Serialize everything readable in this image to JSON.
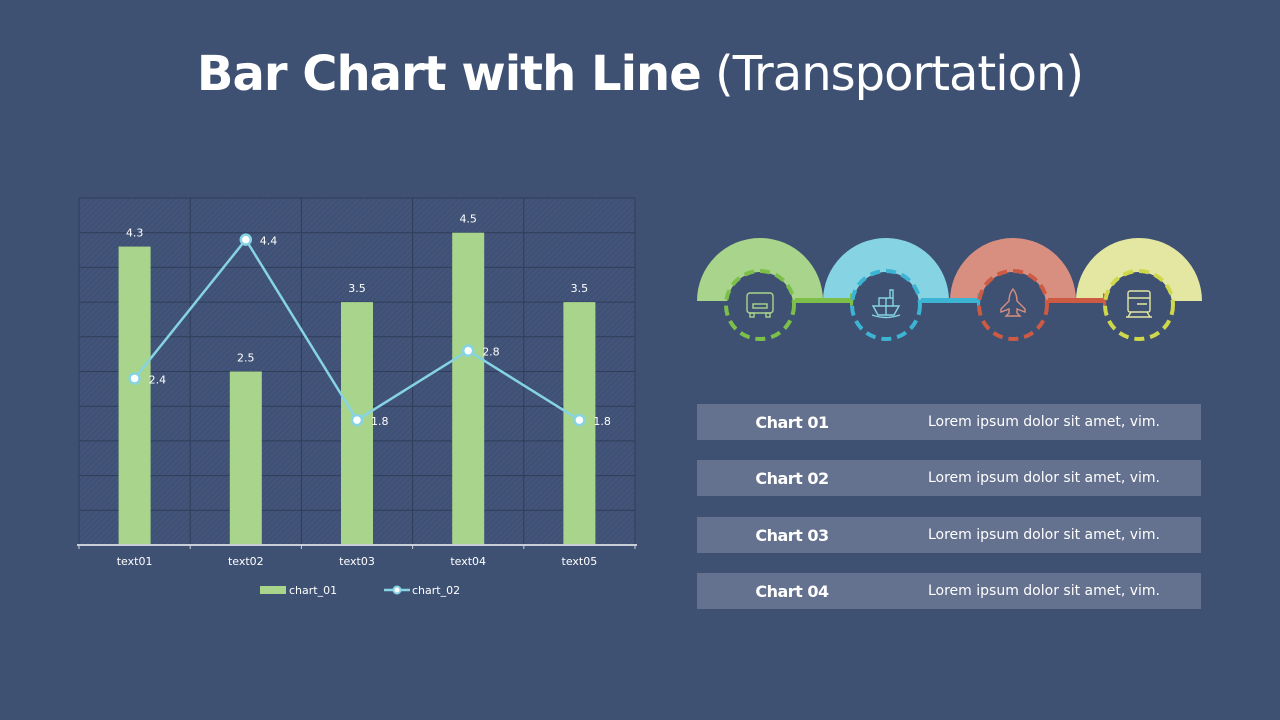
{
  "title": {
    "bold": "Bar Chart with Line",
    "light": "(Transportation)"
  },
  "chart_data": {
    "type": "bar",
    "categories": [
      "text01",
      "text02",
      "text03",
      "text04",
      "text05"
    ],
    "series": [
      {
        "name": "chart_01",
        "kind": "bar",
        "values": [
          4.3,
          2.5,
          3.5,
          4.5,
          3.5
        ],
        "color": "#a8d58b"
      },
      {
        "name": "chart_02",
        "kind": "line",
        "values": [
          2.4,
          4.4,
          1.8,
          2.8,
          1.8
        ],
        "color": "#86d3e4"
      }
    ],
    "ylim": [
      0,
      5
    ],
    "grid": true,
    "legend": "bottom"
  },
  "steps": [
    {
      "icon": "truck-icon",
      "color": "#a8d58b",
      "dash": "#7cc04a"
    },
    {
      "icon": "ship-icon",
      "color": "#86d3e4",
      "dash": "#3bb5d3"
    },
    {
      "icon": "airplane-icon",
      "color": "#d98f80",
      "dash": "#cd5a43"
    },
    {
      "icon": "train-icon",
      "color": "#e3e7a1",
      "dash": "#cfd84a"
    }
  ],
  "rows": [
    {
      "label": "Chart 01",
      "text": "Lorem ipsum dolor sit amet, vim."
    },
    {
      "label": "Chart 02",
      "text": "Lorem ipsum dolor sit amet, vim."
    },
    {
      "label": "Chart 03",
      "text": "Lorem ipsum dolor sit amet, vim."
    },
    {
      "label": "Chart 04",
      "text": "Lorem ipsum dolor sit amet, vim."
    }
  ]
}
